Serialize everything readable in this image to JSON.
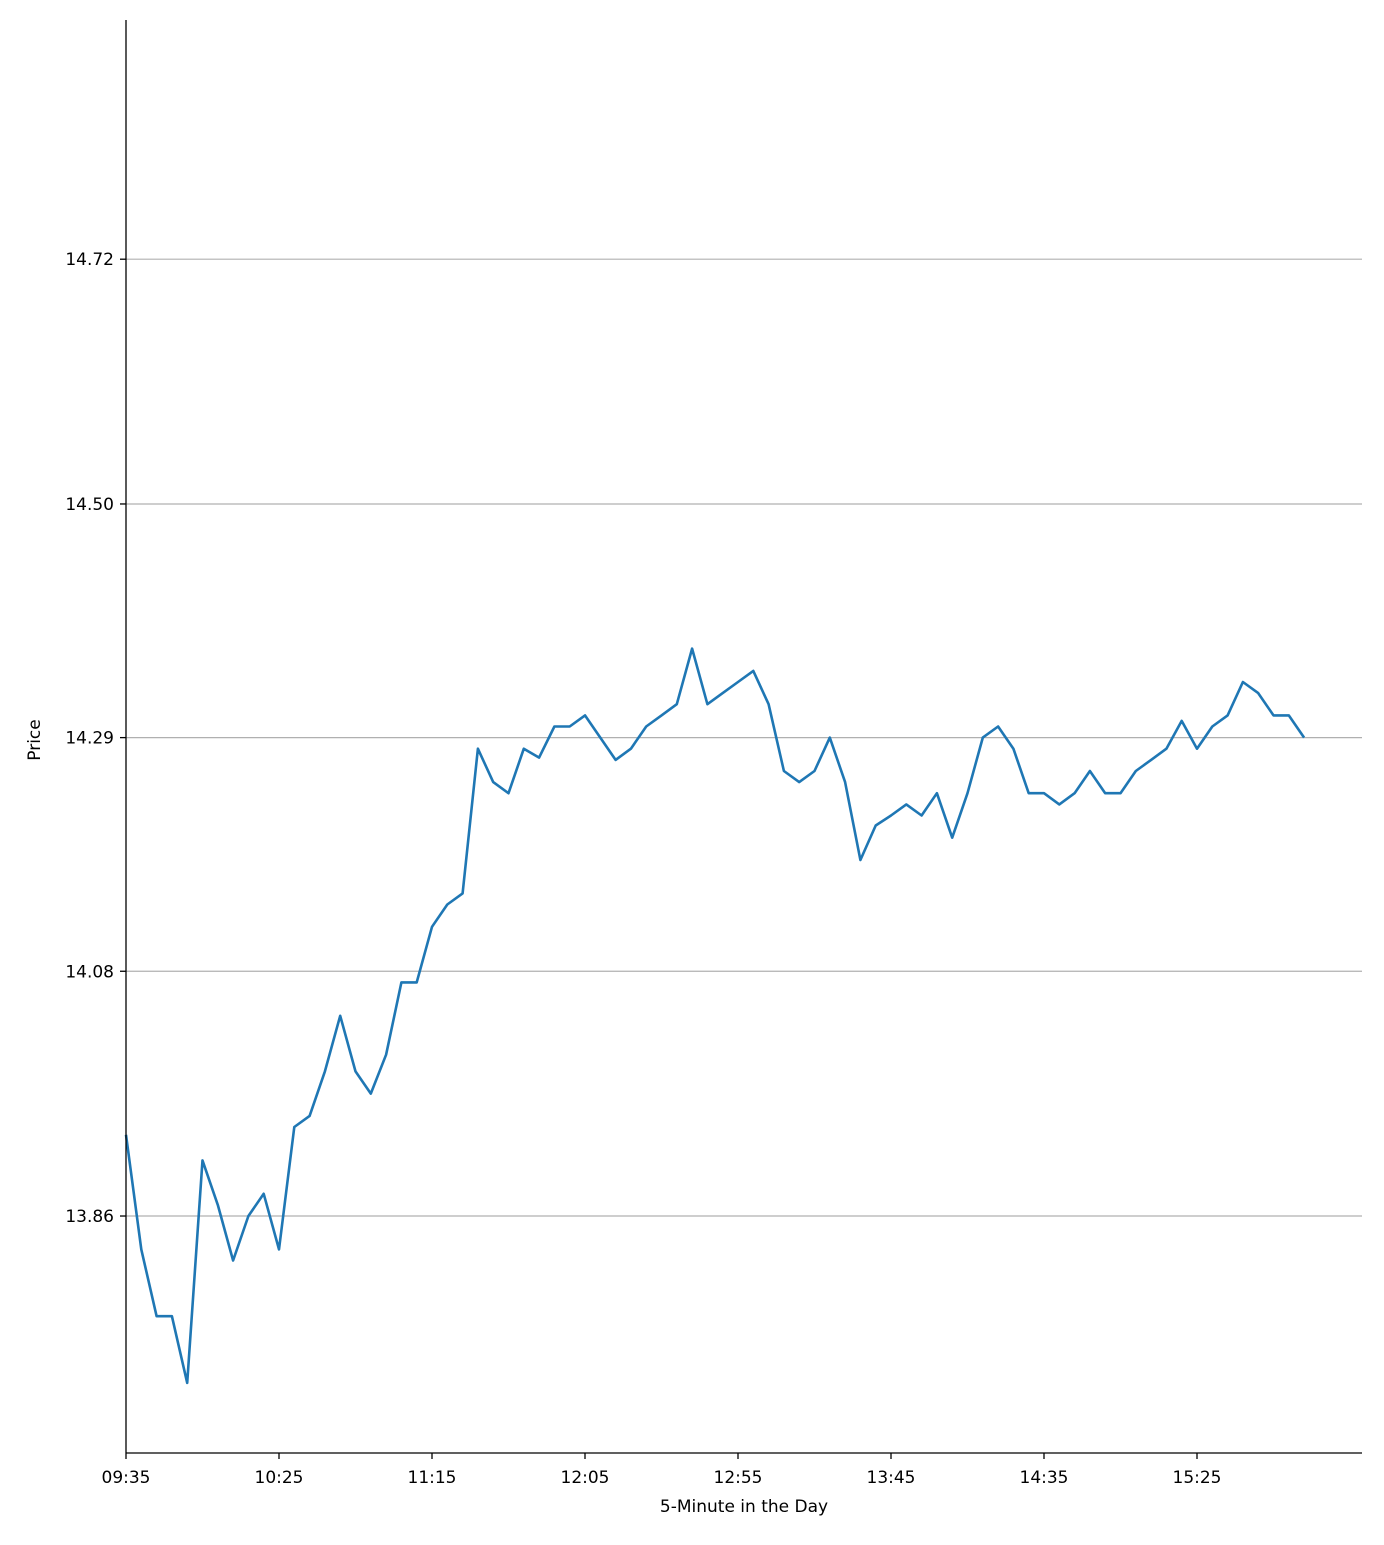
{
  "chart_data": {
    "type": "line",
    "xlabel": "5-Minute in the Day",
    "ylabel": "Price",
    "categories": [
      "09:35",
      "09:40",
      "09:45",
      "09:50",
      "09:55",
      "10:00",
      "10:05",
      "10:10",
      "10:15",
      "10:20",
      "10:25",
      "10:30",
      "10:35",
      "10:40",
      "10:45",
      "10:50",
      "10:55",
      "11:00",
      "11:05",
      "11:10",
      "11:15",
      "11:20",
      "11:25",
      "11:30",
      "11:35",
      "11:40",
      "11:45",
      "11:50",
      "11:55",
      "12:00",
      "12:05",
      "12:10",
      "12:15",
      "12:20",
      "12:25",
      "12:30",
      "12:35",
      "12:40",
      "12:45",
      "12:50",
      "12:55",
      "13:00",
      "13:05",
      "13:10",
      "13:15",
      "13:20",
      "13:25",
      "13:30",
      "13:35",
      "13:40",
      "13:45",
      "13:50",
      "13:55",
      "14:00",
      "14:05",
      "14:10",
      "14:15",
      "14:20",
      "14:25",
      "14:30",
      "14:35",
      "14:40",
      "14:45",
      "14:50",
      "14:55",
      "15:00",
      "15:05",
      "15:10",
      "15:15",
      "15:20",
      "15:25",
      "15:30",
      "15:35",
      "15:40",
      "15:45",
      "15:50",
      "15:55",
      "16:00"
    ],
    "series": [
      {
        "name": "Price",
        "color": "#1f77b4",
        "values": [
          13.933,
          13.83,
          13.77,
          13.77,
          13.71,
          13.91,
          13.87,
          13.82,
          13.86,
          13.88,
          13.83,
          13.94,
          13.95,
          13.99,
          14.04,
          13.99,
          13.97,
          14.005,
          14.07,
          14.07,
          14.12,
          14.14,
          14.15,
          14.28,
          14.25,
          14.24,
          14.28,
          14.272,
          14.3,
          14.3,
          14.31,
          14.29,
          14.27,
          14.28,
          14.3,
          14.31,
          14.32,
          14.37,
          14.32,
          14.33,
          14.34,
          14.35,
          14.32,
          14.26,
          14.25,
          14.26,
          14.29,
          14.25,
          14.18,
          14.211,
          14.22,
          14.23,
          14.22,
          14.24,
          14.2,
          14.24,
          14.29,
          14.3,
          14.28,
          14.24,
          14.24,
          14.23,
          14.24,
          14.26,
          14.24,
          14.24,
          14.26,
          14.27,
          14.28,
          14.305,
          14.28,
          14.3,
          14.31,
          14.34,
          14.33,
          14.31,
          14.31,
          14.29
        ]
      }
    ],
    "xticks": [
      "09:35",
      "10:25",
      "11:15",
      "12:05",
      "12:55",
      "13:45",
      "14:35",
      "15:25"
    ],
    "ylim": [
      13.647,
      14.935
    ],
    "yticks": [
      13.86,
      14.08,
      14.29,
      {
        "value": 14.5,
        "label": "14.50"
      },
      14.72
    ],
    "grid": "y"
  }
}
